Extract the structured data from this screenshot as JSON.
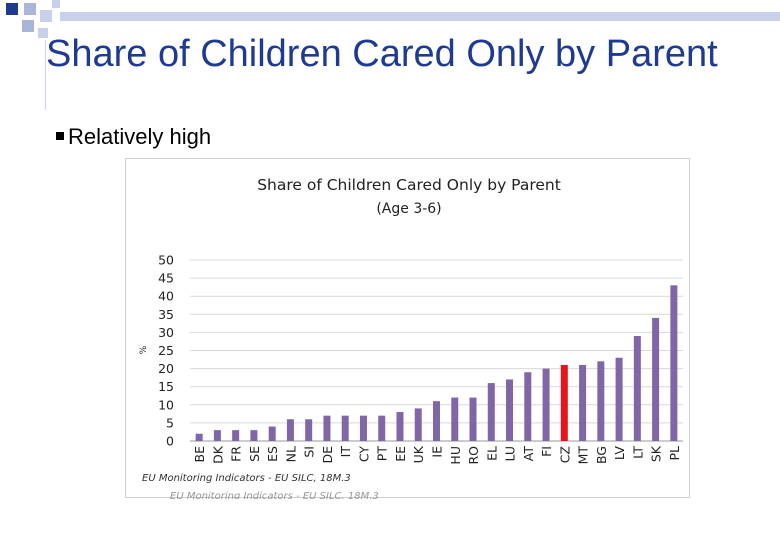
{
  "slide": {
    "title": "Share of Children Cared Only by Parent",
    "bullet": "Relatively high"
  },
  "colors": {
    "bar": "#7f66a6",
    "highlight": "#e8141b",
    "title": "#1f3a93",
    "deco": "#1f3a93"
  },
  "chart_data": {
    "type": "bar",
    "title": "Share of Children Cared Only by Parent",
    "subtitle": "(Age 3-6)",
    "xlabel": "",
    "ylabel": "%",
    "ylim": [
      0,
      50
    ],
    "yticks": [
      0,
      5,
      10,
      15,
      20,
      25,
      30,
      35,
      40,
      45,
      50
    ],
    "grid": true,
    "categories": [
      "BE",
      "DK",
      "FR",
      "SE",
      "ES",
      "NL",
      "SI",
      "DE",
      "IT",
      "CY",
      "PT",
      "EE",
      "UK",
      "IE",
      "HU",
      "RO",
      "EL",
      "LU",
      "AT",
      "FI",
      "CZ",
      "MT",
      "BG",
      "LV",
      "LT",
      "SK",
      "PL"
    ],
    "values": [
      2,
      3,
      3,
      3,
      4,
      6,
      6,
      7,
      7,
      7,
      7,
      8,
      9,
      11,
      12,
      12,
      16,
      17,
      19,
      20,
      21,
      21,
      22,
      23,
      29,
      34,
      43
    ],
    "highlight": "CZ",
    "source": "EU Monitoring Indicators - EU SILC, 18M.3",
    "source_echo": "EU Monitoring Indicators - EU SILC, 18M.3"
  }
}
